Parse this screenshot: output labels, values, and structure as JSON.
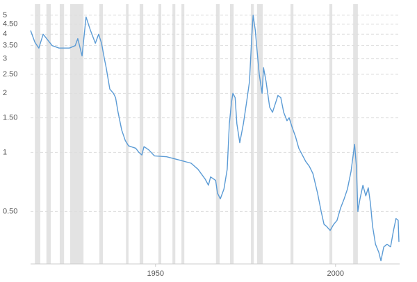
{
  "chart_data": {
    "type": "line",
    "log_scale_y": true,
    "grid": true,
    "xlim": [
      1915.3,
      2017.8
    ],
    "ylim": [
      0.27,
      5.6
    ],
    "xticks": [
      1950,
      2000
    ],
    "yticks": [
      {
        "value": 0.5,
        "label": "0.50"
      },
      1,
      {
        "value": 1.5,
        "label": "1.50"
      },
      2,
      {
        "value": 2.5,
        "label": "2.50"
      },
      3,
      {
        "value": 3.5,
        "label": "3.50"
      },
      4,
      {
        "value": 4.5,
        "label": "4.50"
      },
      5
    ],
    "band_color": "#e3e3e3",
    "shaded_periods": [
      [
        1916.5,
        1918
      ],
      [
        1919.7,
        1920.9
      ],
      [
        1923.4,
        1924.6
      ],
      [
        1926.3,
        1930
      ],
      [
        1934.4,
        1935.4
      ],
      [
        1941.8,
        1942.5
      ],
      [
        1945.6,
        1946.6
      ],
      [
        1950.8,
        1951.6
      ],
      [
        1954.7,
        1955.5
      ],
      [
        1957.2,
        1958
      ],
      [
        1966.8,
        1967.8
      ],
      [
        1970.7,
        1971.7
      ],
      [
        1976.5,
        1977.3
      ],
      [
        1978.2,
        1979.8
      ],
      [
        1987.5,
        1988.3
      ],
      [
        1998.3,
        1999.1
      ],
      [
        2004.9,
        2006.2
      ]
    ],
    "x": [
      1915.3,
      1916.5,
      1917.6,
      1918.8,
      1921.3,
      1923.2,
      1926.1,
      1927.7,
      1928.4,
      1929.6,
      1930.7,
      1931.9,
      1933.3,
      1934.2,
      1935.0,
      1935.8,
      1936.3,
      1937.3,
      1938.3,
      1938.9,
      1939.6,
      1940.6,
      1941.6,
      1942.5,
      1944.5,
      1945.4,
      1946.2,
      1946.8,
      1948.1,
      1949.7,
      1953.1,
      1957.0,
      1959.9,
      1961.8,
      1963.8,
      1964.7,
      1965.3,
      1966.7,
      1967.2,
      1968.0,
      1969.0,
      1969.9,
      1970.5,
      1971.1,
      1971.5,
      1972.1,
      1972.6,
      1973.4,
      1974.4,
      1975.3,
      1976.1,
      1976.7,
      1977.1,
      1977.7,
      1978.2,
      1978.8,
      1979.6,
      1980.0,
      1980.7,
      1981.7,
      1982.5,
      1983.4,
      1984.0,
      1984.8,
      1985.6,
      1986.5,
      1987.1,
      1987.9,
      1988.9,
      1989.8,
      1991.7,
      1992.7,
      1993.7,
      1995.0,
      1996.0,
      1996.8,
      1997.5,
      1998.5,
      1999.5,
      2000.4,
      2001.4,
      2002.4,
      2003.3,
      2004.3,
      2005.3,
      2005.8,
      2006.2,
      2006.8,
      2007.6,
      2008.4,
      2009.1,
      2009.7,
      2010.3,
      2011.1,
      2012.0,
      2012.6,
      2013.4,
      2014.3,
      2015.3,
      2016.1,
      2016.8,
      2017.4,
      2017.6
    ],
    "series": [
      {
        "color": "#5b9bd5",
        "values": [
          4.18,
          3.64,
          3.4,
          4.0,
          3.5,
          3.4,
          3.4,
          3.5,
          3.8,
          3.1,
          4.9,
          4.2,
          3.6,
          4.0,
          3.6,
          3.0,
          2.7,
          2.1,
          2.0,
          1.9,
          1.6,
          1.3,
          1.15,
          1.08,
          1.05,
          1.0,
          0.97,
          1.07,
          1.03,
          0.96,
          0.95,
          0.91,
          0.88,
          0.82,
          0.73,
          0.68,
          0.75,
          0.72,
          0.62,
          0.58,
          0.65,
          0.82,
          1.4,
          1.8,
          2.0,
          1.9,
          1.4,
          1.12,
          1.4,
          1.8,
          2.3,
          3.8,
          5.0,
          4.2,
          3.3,
          2.5,
          2.0,
          2.7,
          2.3,
          1.7,
          1.6,
          1.8,
          1.95,
          1.9,
          1.6,
          1.45,
          1.5,
          1.35,
          1.2,
          1.05,
          0.9,
          0.85,
          0.78,
          0.62,
          0.5,
          0.43,
          0.42,
          0.4,
          0.43,
          0.45,
          0.52,
          0.58,
          0.65,
          0.8,
          1.1,
          0.85,
          0.5,
          0.58,
          0.68,
          0.6,
          0.66,
          0.55,
          0.42,
          0.34,
          0.31,
          0.28,
          0.33,
          0.34,
          0.33,
          0.4,
          0.46,
          0.45,
          0.35
        ]
      }
    ]
  }
}
